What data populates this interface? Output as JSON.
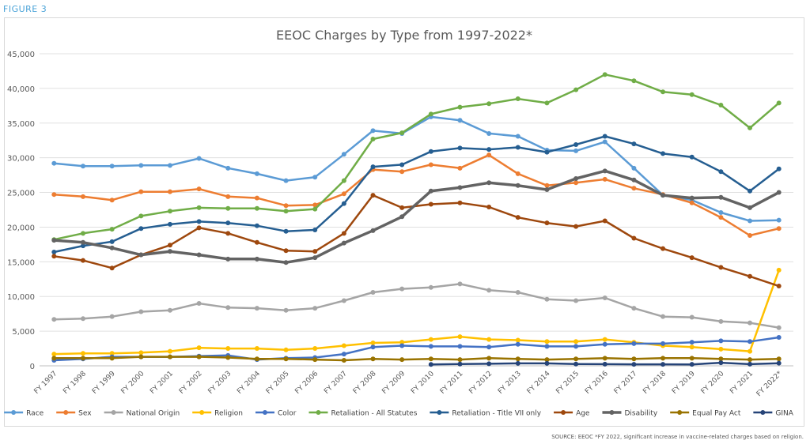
{
  "figure_label": "FIGURE 3",
  "source_note": "SOURCE: EEOC  *FY 2022, significant increase in vaccine-related charges based on religion.",
  "chart_data": {
    "type": "line",
    "title": "EEOC Charges by Type from 1997-2022*",
    "xlabel": "",
    "ylabel": "",
    "ylim": [
      0,
      45000
    ],
    "yticks": [
      0,
      5000,
      10000,
      15000,
      20000,
      25000,
      30000,
      35000,
      40000,
      45000
    ],
    "ytick_labels": [
      "0",
      "5,000",
      "10,000",
      "15,000",
      "20,000",
      "25,000",
      "30,000",
      "35,000",
      "40,000",
      "45,000"
    ],
    "grid": true,
    "legend_position": "bottom",
    "categories": [
      "FY 1997",
      "FY 1998",
      "FY 1999",
      "FY 2000",
      "FY 2001",
      "FY 2002",
      "FY 2003",
      "FY 2004",
      "FY 2005",
      "FY 2006",
      "FY 2007",
      "FY 2008",
      "FY 2009",
      "FY 2010",
      "FY 2011",
      "FY 2012",
      "FY 2013",
      "FY 2014",
      "FY 2015",
      "FY 2016",
      "FY 2017",
      "FY 2018",
      "FY 2019",
      "FY 2020",
      "FY 2021",
      "FY 2022*"
    ],
    "series": [
      {
        "name": "Race",
        "color": "#5b9bd5",
        "width": 2,
        "values": [
          29200,
          28800,
          28800,
          28900,
          28900,
          29900,
          28500,
          27700,
          26700,
          27200,
          30500,
          33900,
          33500,
          35900,
          35400,
          33500,
          33100,
          31100,
          31000,
          32300,
          28500,
          24600,
          23900,
          22100,
          20900,
          21000
        ]
      },
      {
        "name": "Sex",
        "color": "#ed7d31",
        "width": 2,
        "values": [
          24700,
          24400,
          23900,
          25100,
          25100,
          25500,
          24400,
          24200,
          23100,
          23200,
          24800,
          28300,
          28000,
          29000,
          28500,
          30400,
          27700,
          26000,
          26400,
          26900,
          25600,
          24700,
          23500,
          21400,
          18800,
          19800
        ]
      },
      {
        "name": "National Origin",
        "color": "#a5a5a5",
        "width": 2,
        "values": [
          6700,
          6800,
          7100,
          7800,
          8000,
          9000,
          8400,
          8300,
          8000,
          8300,
          9400,
          10600,
          11100,
          11300,
          11800,
          10900,
          10600,
          9600,
          9400,
          9800,
          8300,
          7100,
          7000,
          6400,
          6200,
          5500
        ]
      },
      {
        "name": "Religion",
        "color": "#ffc000",
        "width": 2,
        "values": [
          1700,
          1800,
          1800,
          1900,
          2100,
          2600,
          2500,
          2500,
          2300,
          2500,
          2900,
          3300,
          3400,
          3800,
          4200,
          3800,
          3700,
          3500,
          3500,
          3800,
          3400,
          2900,
          2700,
          2400,
          2100,
          13800
        ]
      },
      {
        "name": "Color",
        "color": "#4472c4",
        "width": 2,
        "values": [
          800,
          1000,
          1300,
          1300,
          1300,
          1400,
          1500,
          900,
          1100,
          1200,
          1700,
          2700,
          2900,
          2800,
          2800,
          2700,
          3100,
          2800,
          2800,
          3100,
          3200,
          3200,
          3400,
          3600,
          3500,
          4100
        ]
      },
      {
        "name": "Retaliation - All Statutes",
        "color": "#70ad47",
        "width": 2,
        "values": [
          18200,
          19100,
          19700,
          21600,
          22300,
          22800,
          22700,
          22700,
          22300,
          22600,
          26700,
          32700,
          33600,
          36300,
          37300,
          37800,
          38500,
          37900,
          39800,
          42000,
          41100,
          39500,
          39100,
          37600,
          34300,
          37900
        ]
      },
      {
        "name": "Retaliation - Title VII only",
        "color": "#255e91",
        "width": 2,
        "values": [
          16400,
          17300,
          17900,
          19800,
          20400,
          20800,
          20600,
          20200,
          19400,
          19600,
          23400,
          28700,
          29000,
          30900,
          31400,
          31200,
          31500,
          30800,
          31900,
          33100,
          32000,
          30600,
          30100,
          28000,
          25200,
          28400
        ]
      },
      {
        "name": "Age",
        "color": "#9e480e",
        "width": 2,
        "values": [
          15800,
          15200,
          14100,
          16000,
          17400,
          19900,
          19100,
          17800,
          16600,
          16500,
          19100,
          24600,
          22800,
          23300,
          23500,
          22900,
          21400,
          20600,
          20100,
          20900,
          18400,
          16900,
          15600,
          14200,
          12900,
          11500
        ]
      },
      {
        "name": "Disability",
        "color": "#636363",
        "width": 3,
        "values": [
          18100,
          17800,
          17000,
          16000,
          16500,
          16000,
          15400,
          15400,
          14900,
          15600,
          17700,
          19500,
          21500,
          25200,
          25700,
          26400,
          26000,
          25400,
          27000,
          28100,
          26800,
          24600,
          24200,
          24300,
          22800,
          25000
        ]
      },
      {
        "name": "Equal Pay Act",
        "color": "#997300",
        "width": 2,
        "values": [
          1100,
          1100,
          1100,
          1300,
          1300,
          1300,
          1200,
          1000,
          1000,
          900,
          800,
          1000,
          900,
          1000,
          900,
          1100,
          1000,
          900,
          1000,
          1100,
          1000,
          1100,
          1100,
          1000,
          900,
          1000
        ]
      },
      {
        "name": "GINA",
        "color": "#264478",
        "width": 2,
        "values": [
          null,
          null,
          null,
          null,
          null,
          null,
          null,
          null,
          null,
          null,
          null,
          null,
          null,
          200,
          250,
          300,
          350,
          350,
          250,
          240,
          220,
          220,
          210,
          440,
          240,
          380
        ]
      }
    ]
  }
}
